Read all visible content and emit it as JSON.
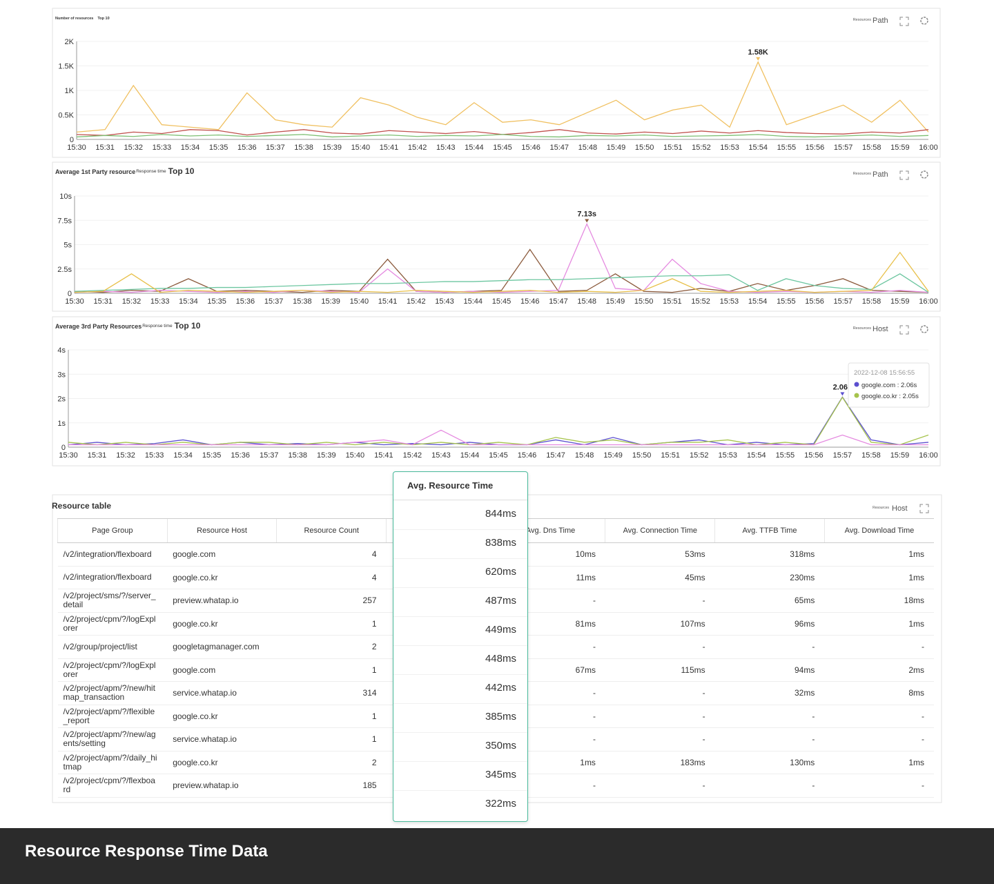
{
  "chart_data": [
    {
      "type": "line",
      "title": "Number of resources",
      "top": "Top 10",
      "group_label": "Resources",
      "group_value": "Path",
      "categories": [
        "15:30",
        "15:31",
        "15:32",
        "15:33",
        "15:34",
        "15:35",
        "15:36",
        "15:37",
        "15:38",
        "15:39",
        "15:40",
        "15:41",
        "15:42",
        "15:43",
        "15:44",
        "15:45",
        "15:46",
        "15:47",
        "15:48",
        "15:49",
        "15:50",
        "15:51",
        "15:52",
        "15:53",
        "15:54",
        "15:55",
        "15:56",
        "15:57",
        "15:58",
        "15:59",
        "16:00"
      ],
      "series": [
        {
          "color": "#f0c060",
          "values": [
            150,
            200,
            1100,
            300,
            250,
            200,
            950,
            400,
            300,
            250,
            850,
            700,
            450,
            300,
            750,
            350,
            400,
            300,
            550,
            800,
            400,
            600,
            700,
            250,
            1580,
            300,
            500,
            700,
            350,
            800,
            150
          ]
        },
        {
          "color": "#c0504d",
          "values": [
            100,
            80,
            150,
            120,
            200,
            180,
            90,
            150,
            200,
            130,
            110,
            180,
            150,
            120,
            160,
            100,
            140,
            200,
            130,
            110,
            150,
            120,
            170,
            130,
            180,
            140,
            120,
            110,
            150,
            130,
            200
          ]
        },
        {
          "color": "#7cbf72",
          "values": [
            50,
            80,
            60,
            100,
            70,
            90,
            60,
            80,
            100,
            50,
            70,
            90,
            60,
            80,
            70,
            100,
            60,
            50,
            80,
            70,
            90,
            60,
            70,
            80,
            100,
            60,
            50,
            70,
            90,
            60,
            80
          ]
        }
      ],
      "ylim": [
        0,
        2000
      ],
      "yticks": [
        0,
        {
          "value": 500,
          "label": "0.5K"
        },
        {
          "value": 1000,
          "label": "1K"
        },
        {
          "value": 1500,
          "label": "1.5K"
        },
        {
          "value": 2000,
          "label": "2K"
        }
      ],
      "grid": true,
      "annotation": {
        "label": "1.58K",
        "value": 1580,
        "category": "15:54"
      }
    },
    {
      "type": "line",
      "title": "Average 1st Party resource",
      "metric": "Response time",
      "top": "Top 10",
      "group_label": "Resources",
      "group_value": "Path",
      "categories": [
        "15:30",
        "15:31",
        "15:32",
        "15:33",
        "15:34",
        "15:35",
        "15:36",
        "15:37",
        "15:38",
        "15:39",
        "15:40",
        "15:41",
        "15:42",
        "15:43",
        "15:44",
        "15:45",
        "15:46",
        "15:47",
        "15:48",
        "15:49",
        "15:50",
        "15:51",
        "15:52",
        "15:53",
        "15:54",
        "15:55",
        "15:56",
        "15:57",
        "15:58",
        "15:59",
        "16:00"
      ],
      "series": [
        {
          "color": "#8b5a3c",
          "values": [
            0.2,
            0.1,
            0.3,
            0.2,
            1.5,
            0.2,
            0.3,
            0.2,
            0.1,
            0.3,
            0.2,
            3.5,
            0.2,
            0.1,
            0.2,
            0.3,
            4.5,
            0.2,
            0.3,
            2.0,
            0.2,
            0.1,
            0.5,
            0.2,
            1.0,
            0.3,
            0.8,
            1.5,
            0.3,
            0.2,
            0.1
          ]
        },
        {
          "color": "#e58ae0",
          "values": [
            0.1,
            0.2,
            0.1,
            0.3,
            0.2,
            0.1,
            0.2,
            0.1,
            0.3,
            0.2,
            0.1,
            2.5,
            0.2,
            0.1,
            0.2,
            0.1,
            0.2,
            0.3,
            7.13,
            0.5,
            0.3,
            3.5,
            1.0,
            0.2,
            0.1,
            0.2,
            0.1,
            0.2,
            0.1,
            0.3,
            0.1
          ]
        },
        {
          "color": "#6cc6a0",
          "values": [
            0.2,
            0.3,
            0.4,
            0.5,
            0.5,
            0.6,
            0.6,
            0.7,
            0.8,
            0.9,
            1.0,
            1.0,
            1.1,
            1.2,
            1.2,
            1.3,
            1.4,
            1.4,
            1.5,
            1.6,
            1.7,
            1.8,
            1.8,
            1.9,
            0.3,
            1.5,
            0.8,
            0.5,
            0.4,
            2.0,
            0.1
          ]
        },
        {
          "color": "#e8c04a",
          "values": [
            0.1,
            0.2,
            2.0,
            0.1,
            0.3,
            0.2,
            0.1,
            0.2,
            0.3,
            0.1,
            0.2,
            0.1,
            0.3,
            0.2,
            0.1,
            0.2,
            0.3,
            0.1,
            0.2,
            0.1,
            0.3,
            1.5,
            0.2,
            0.1,
            0.2,
            0.3,
            0.1,
            0.2,
            0.3,
            4.2,
            0.2
          ]
        }
      ],
      "ylim": [
        0,
        10
      ],
      "yticks": [
        0,
        {
          "value": 2.5,
          "label": "2.5s"
        },
        {
          "value": 5,
          "label": "5s"
        },
        {
          "value": 7.5,
          "label": "7.5s"
        },
        {
          "value": 10,
          "label": "10s"
        }
      ],
      "grid": true,
      "annotation": {
        "label": "7.13s",
        "value": 7.13,
        "category": "15:48"
      }
    },
    {
      "type": "line",
      "title": "Average 3rd Party Resources",
      "metric": "Response time",
      "top": "Top 10",
      "group_label": "Resources",
      "group_value": "Host",
      "categories": [
        "15:30",
        "15:31",
        "15:32",
        "15:33",
        "15:34",
        "15:35",
        "15:36",
        "15:37",
        "15:38",
        "15:39",
        "15:40",
        "15:41",
        "15:42",
        "15:43",
        "15:44",
        "15:45",
        "15:46",
        "15:47",
        "15:48",
        "15:49",
        "15:50",
        "15:51",
        "15:52",
        "15:53",
        "15:54",
        "15:55",
        "15:56",
        "15:57",
        "15:58",
        "15:59",
        "16:00"
      ],
      "series": [
        {
          "color": "#5b4fcf",
          "values": [
            0.1,
            0.2,
            0.1,
            0.15,
            0.3,
            0.1,
            0.2,
            0.1,
            0.15,
            0.1,
            0.2,
            0.1,
            0.15,
            0.1,
            0.2,
            0.1,
            0.1,
            0.3,
            0.1,
            0.4,
            0.1,
            0.2,
            0.3,
            0.1,
            0.2,
            0.1,
            0.15,
            2.06,
            0.3,
            0.1,
            0.2
          ]
        },
        {
          "color": "#a6c34c",
          "values": [
            0.2,
            0.1,
            0.2,
            0.1,
            0.2,
            0.1,
            0.2,
            0.2,
            0.1,
            0.2,
            0.1,
            0.2,
            0.1,
            0.2,
            0.1,
            0.2,
            0.1,
            0.4,
            0.2,
            0.3,
            0.1,
            0.2,
            0.2,
            0.3,
            0.1,
            0.2,
            0.1,
            2.05,
            0.2,
            0.1,
            0.5
          ]
        },
        {
          "color": "#e58ae0",
          "values": [
            0.1,
            0.1,
            0.1,
            0.1,
            0.1,
            0.1,
            0.1,
            0.1,
            0.1,
            0.1,
            0.2,
            0.3,
            0.1,
            0.7,
            0.1,
            0.1,
            0.1,
            0.1,
            0.1,
            0.1,
            0.1,
            0.1,
            0.1,
            0.1,
            0.1,
            0.1,
            0.1,
            0.5,
            0.1,
            0.1,
            0.1
          ]
        }
      ],
      "ylim": [
        0,
        4
      ],
      "yticks": [
        0,
        {
          "value": 1,
          "label": "1s"
        },
        {
          "value": 2,
          "label": "2s"
        },
        {
          "value": 3,
          "label": "3s"
        },
        {
          "value": 4,
          "label": "4s"
        }
      ],
      "grid": true,
      "annotation": {
        "label": "2.06s",
        "value": 2.06,
        "category": "15:57"
      },
      "tooltip": {
        "time": "2022-12-08 15:56:55",
        "items": [
          {
            "text": "google.com : 2.06s",
            "color": "#5b4fcf"
          },
          {
            "text": "google.co.kr : 2.05s",
            "color": "#a6c34c"
          }
        ]
      }
    }
  ],
  "table": {
    "title": "Resource table",
    "group_label": "Resources",
    "group_value": "Host",
    "columns": [
      "Page Group",
      "Resource Host",
      "Resource Count",
      "Avg. Dns Time",
      "Avg. Connection Time",
      "Avg. TTFB Time",
      "Avg. Download Time"
    ],
    "rows": [
      [
        "/v2/integration/flexboard",
        "google.com",
        4,
        "10ms",
        "53ms",
        "318ms",
        "1ms"
      ],
      [
        "/v2/integration/flexboard",
        "google.co.kr",
        4,
        "11ms",
        "45ms",
        "230ms",
        "1ms"
      ],
      [
        "/v2/project/sms/?/server_detail",
        "preview.whatap.io",
        257,
        "-",
        "-",
        "65ms",
        "18ms"
      ],
      [
        "/v2/project/cpm/?/logExplorer",
        "google.co.kr",
        1,
        "81ms",
        "107ms",
        "96ms",
        "1ms"
      ],
      [
        "/v2/group/project/list",
        "googletagmanager.com",
        2,
        "-",
        "-",
        "-",
        "-"
      ],
      [
        "/v2/project/cpm/?/logExplorer",
        "google.com",
        1,
        "67ms",
        "115ms",
        "94ms",
        "2ms"
      ],
      [
        "/v2/project/apm/?/new/hitmap_transaction",
        "service.whatap.io",
        314,
        "-",
        "-",
        "32ms",
        "8ms"
      ],
      [
        "/v2/project/apm/?/flexible_report",
        "google.co.kr",
        1,
        "-",
        "-",
        "-",
        "-"
      ],
      [
        "/v2/project/apm/?/new/agents/setting",
        "service.whatap.io",
        1,
        "-",
        "-",
        "-",
        "-"
      ],
      [
        "/v2/project/apm/?/daily_hitmap",
        "google.co.kr",
        2,
        "1ms",
        "183ms",
        "130ms",
        "1ms"
      ],
      [
        "/v2/project/cpm/?/flexboard",
        "preview.whatap.io",
        185,
        "-",
        "-",
        "-",
        "-"
      ]
    ]
  },
  "popup": {
    "title": "Avg. Resource Time",
    "values": [
      "844ms",
      "838ms",
      "620ms",
      "487ms",
      "449ms",
      "448ms",
      "442ms",
      "385ms",
      "350ms",
      "345ms",
      "322ms"
    ]
  },
  "caption": "Resource Response Time Data"
}
